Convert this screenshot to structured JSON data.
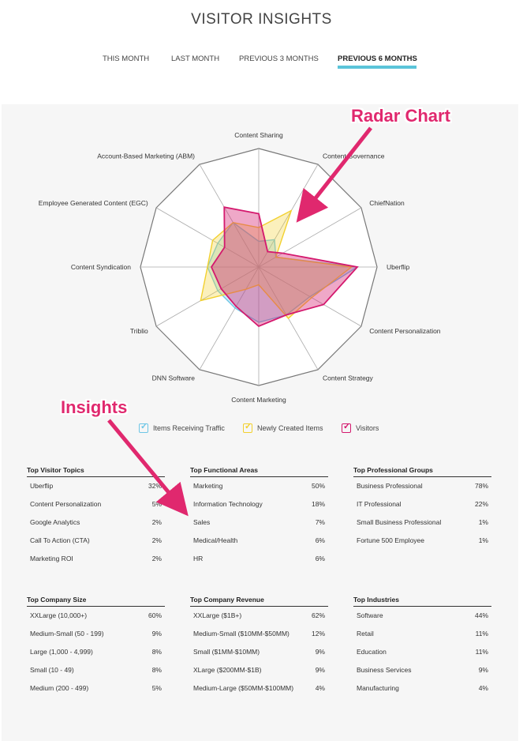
{
  "header": {
    "title": "VISITOR INSIGHTS"
  },
  "tabs": [
    {
      "label": "THIS MONTH"
    },
    {
      "label": "LAST MONTH"
    },
    {
      "label": "PREVIOUS 3 MONTHS"
    },
    {
      "label": "PREVIOUS 6 MONTHS"
    }
  ],
  "annotations": {
    "radar": "Radar Chart",
    "insights": "Insights"
  },
  "colors": {
    "accent": "#5bc4d9",
    "traffic": "#6ec6e6",
    "created": "#f2d02e",
    "visitors": "#d4196e",
    "annotation": "#e0286e"
  },
  "chart_data": {
    "type": "radar",
    "axes": [
      "Content Sharing",
      "Content Governance",
      "ChiefNation",
      "Uberflip",
      "Content Personalization",
      "Content Strategy",
      "Content Marketing",
      "DNN Software",
      "Triblio",
      "Content Syndication",
      "Employee Generated Content (EGC)",
      "Account-Based Marketing (ABM)"
    ],
    "rings": 6,
    "max": 6,
    "series": [
      {
        "name": "Items Receiving Traffic",
        "color": "#6ec6e6",
        "values": [
          1.3,
          1.6,
          1.0,
          5.0,
          3.0,
          2.8,
          2.8,
          2.4,
          2.4,
          2.6,
          2.4,
          2.6
        ]
      },
      {
        "name": "Newly Created Items",
        "color": "#f2d02e",
        "values": [
          2.0,
          3.3,
          1.0,
          4.7,
          3.1,
          3.0,
          0.9,
          1.3,
          3.4,
          2.6,
          2.7,
          2.6
        ]
      },
      {
        "name": "Visitors",
        "color": "#d4196e",
        "values": [
          2.7,
          0.9,
          1.4,
          5.0,
          3.8,
          2.8,
          3.0,
          2.3,
          2.2,
          2.4,
          2.0,
          3.5
        ]
      }
    ]
  },
  "legend": [
    {
      "label": "Items Receiving Traffic"
    },
    {
      "label": "Newly Created Items"
    },
    {
      "label": "Visitors"
    }
  ],
  "tables": [
    {
      "title": "Top Visitor Topics",
      "rows": [
        {
          "label": "Uberflip",
          "value": "32%"
        },
        {
          "label": "Content Personalization",
          "value": "5%"
        },
        {
          "label": "Google Analytics",
          "value": "2%"
        },
        {
          "label": "Call To Action (CTA)",
          "value": "2%"
        },
        {
          "label": "Marketing ROI",
          "value": "2%"
        }
      ]
    },
    {
      "title": "Top Functional Areas",
      "rows": [
        {
          "label": "Marketing",
          "value": "50%"
        },
        {
          "label": "Information Technology",
          "value": "18%"
        },
        {
          "label": "Sales",
          "value": "7%"
        },
        {
          "label": "Medical/Health",
          "value": "6%"
        },
        {
          "label": "HR",
          "value": "6%"
        }
      ]
    },
    {
      "title": "Top Professional Groups",
      "rows": [
        {
          "label": "Business Professional",
          "value": "78%"
        },
        {
          "label": "IT Professional",
          "value": "22%"
        },
        {
          "label": "Small Business Professional",
          "value": "1%"
        },
        {
          "label": "Fortune 500 Employee",
          "value": "1%"
        }
      ]
    },
    {
      "title": "Top Company Size",
      "rows": [
        {
          "label": "XXLarge (10,000+)",
          "value": "60%"
        },
        {
          "label": "Medium-Small (50 - 199)",
          "value": "9%"
        },
        {
          "label": "Large (1,000 - 4,999)",
          "value": "8%"
        },
        {
          "label": "Small (10 - 49)",
          "value": "8%"
        },
        {
          "label": "Medium (200 - 499)",
          "value": "5%"
        }
      ]
    },
    {
      "title": "Top Company Revenue",
      "rows": [
        {
          "label": "XXLarge ($1B+)",
          "value": "62%"
        },
        {
          "label": "Medium-Small ($10MM-$50MM)",
          "value": "12%"
        },
        {
          "label": "Small ($1MM-$10MM)",
          "value": "9%"
        },
        {
          "label": "XLarge ($200MM-$1B)",
          "value": "9%"
        },
        {
          "label": "Medium-Large ($50MM-$100MM)",
          "value": "4%"
        }
      ]
    },
    {
      "title": "Top Industries",
      "rows": [
        {
          "label": "Software",
          "value": "44%"
        },
        {
          "label": "Retail",
          "value": "11%"
        },
        {
          "label": "Education",
          "value": "11%"
        },
        {
          "label": "Business Services",
          "value": "9%"
        },
        {
          "label": "Manufacturing",
          "value": "4%"
        }
      ]
    }
  ]
}
